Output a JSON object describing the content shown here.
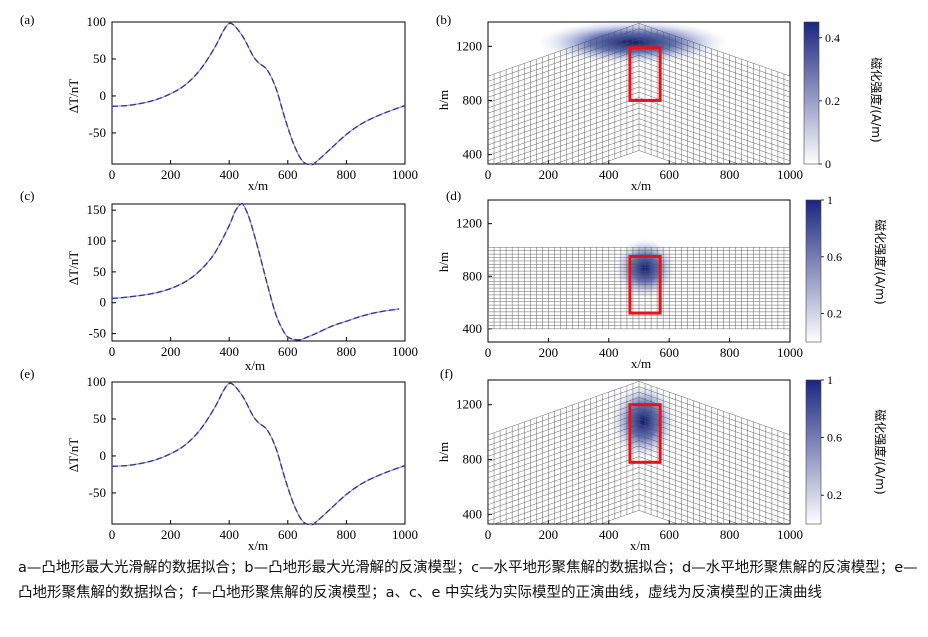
{
  "figure": {
    "caption": "a—凸地形最大光滑解的数据拟合；b—凸地形最大光滑解的反演模型；c—水平地形聚焦解的数据拟合；d—水平地形聚焦解的反演模型；e—凸地形聚焦解的数据拟合；f—凸地形聚焦解的反演模型；a、c、e 中实线为实际模型的正演曲线，虚线为反演模型的正演曲线"
  },
  "chart_data": [
    {
      "panel": "(a)",
      "type": "line",
      "xlabel": "x/m",
      "ylabel": "ΔT/nT",
      "xlim": [
        0,
        1000
      ],
      "ylim": [
        -92,
        100
      ],
      "xticks": [
        0,
        200,
        400,
        600,
        800,
        1000
      ],
      "yticks": [
        -50,
        0,
        50,
        100
      ],
      "series": [
        {
          "style": "solid",
          "color": "#9a9a9a",
          "x": [
            0,
            50,
            100,
            150,
            200,
            250,
            300,
            350,
            380,
            400,
            420,
            450,
            480,
            500,
            530,
            560,
            590,
            620,
            650,
            680,
            700,
            750,
            800,
            850,
            900,
            950,
            1000
          ],
          "y": [
            -14,
            -13,
            -10,
            -5,
            3,
            15,
            35,
            65,
            88,
            98,
            94,
            78,
            55,
            45,
            35,
            10,
            -30,
            -65,
            -88,
            -93,
            -88,
            -70,
            -52,
            -38,
            -28,
            -20,
            -13
          ]
        },
        {
          "style": "dashed",
          "color": "#2f38a8",
          "x": [
            0,
            50,
            100,
            150,
            200,
            250,
            300,
            350,
            380,
            400,
            420,
            450,
            480,
            500,
            530,
            560,
            590,
            620,
            650,
            680,
            700,
            750,
            800,
            850,
            900,
            950,
            1000
          ],
          "y": [
            -14,
            -13,
            -10,
            -5,
            3,
            15,
            35,
            65,
            88,
            98,
            94,
            78,
            55,
            45,
            35,
            10,
            -30,
            -65,
            -88,
            -93,
            -88,
            -70,
            -52,
            -38,
            -28,
            -20,
            -13
          ]
        }
      ]
    },
    {
      "panel": "(b)",
      "type": "heatmap",
      "terrain": "convex",
      "xlabel": "x/m",
      "ylabel": "h/m",
      "xlim": [
        0,
        1000
      ],
      "ylim": [
        330,
        1380
      ],
      "xticks": [
        0,
        200,
        400,
        600,
        800,
        1000
      ],
      "yticks": [
        400,
        800,
        1200
      ],
      "colorbar": {
        "label": "磁化强度/(A/m)",
        "range": [
          0,
          0.45
        ],
        "ticks": [
          0,
          0.2,
          0.4
        ]
      },
      "true_model": {
        "x": [
          470,
          570
        ],
        "h": [
          800,
          1190
        ]
      },
      "recovered": {
        "cx": 480,
        "ch": 1230,
        "value": 0.45
      }
    },
    {
      "panel": "(c)",
      "type": "line",
      "xlabel": "x/m",
      "ylabel": "ΔT/nT",
      "xlim": [
        0,
        1000
      ],
      "ylim": [
        -62,
        160
      ],
      "xticks": [
        0,
        200,
        400,
        600,
        800,
        1000
      ],
      "yticks": [
        -50,
        0,
        50,
        100,
        150
      ],
      "series": [
        {
          "style": "solid",
          "color": "#9a9a9a",
          "x": [
            0,
            50,
            100,
            150,
            200,
            250,
            300,
            350,
            400,
            420,
            440,
            450,
            470,
            500,
            530,
            560,
            590,
            610,
            640,
            660,
            700,
            750,
            800,
            850,
            900,
            950,
            980
          ],
          "y": [
            7,
            9,
            12,
            16,
            23,
            34,
            52,
            80,
            125,
            148,
            160,
            157,
            135,
            85,
            30,
            -20,
            -50,
            -58,
            -60,
            -57,
            -49,
            -38,
            -30,
            -22,
            -16,
            -12,
            -10
          ]
        },
        {
          "style": "dashed",
          "color": "#2f38a8",
          "x": [
            0,
            50,
            100,
            150,
            200,
            250,
            300,
            350,
            400,
            420,
            440,
            450,
            470,
            500,
            530,
            560,
            590,
            610,
            640,
            660,
            700,
            750,
            800,
            850,
            900,
            950,
            980
          ],
          "y": [
            7,
            9,
            12,
            16,
            23,
            34,
            52,
            80,
            125,
            148,
            160,
            157,
            135,
            85,
            30,
            -20,
            -50,
            -58,
            -60,
            -57,
            -49,
            -38,
            -30,
            -22,
            -16,
            -12,
            -10
          ]
        }
      ]
    },
    {
      "panel": "(d)",
      "type": "heatmap",
      "terrain": "flat",
      "xlabel": "x/m",
      "ylabel": "h/m",
      "xlim": [
        0,
        1000
      ],
      "ylim": [
        300,
        1380
      ],
      "xticks": [
        0,
        200,
        400,
        600,
        800,
        1000
      ],
      "yticks": [
        400,
        800,
        1200
      ],
      "colorbar": {
        "label": "磁化强度/(A/m)",
        "range": [
          0,
          1
        ],
        "ticks": [
          0.2,
          0.6,
          1
        ]
      },
      "true_model": {
        "x": [
          470,
          570
        ],
        "h": [
          520,
          950
        ]
      },
      "recovered": {
        "cx": 520,
        "ch": 860,
        "value": 1.0
      }
    },
    {
      "panel": "(e)",
      "type": "line",
      "xlabel": "x/m",
      "ylabel": "ΔT/nT",
      "xlim": [
        0,
        1000
      ],
      "ylim": [
        -92,
        100
      ],
      "xticks": [
        0,
        200,
        400,
        600,
        800,
        1000
      ],
      "yticks": [
        -50,
        0,
        50,
        100
      ],
      "series": [
        {
          "style": "solid",
          "color": "#9a9a9a",
          "x": [
            0,
            50,
            100,
            150,
            200,
            250,
            300,
            350,
            380,
            400,
            420,
            450,
            480,
            500,
            530,
            560,
            590,
            620,
            650,
            680,
            700,
            750,
            800,
            850,
            900,
            950,
            1000
          ],
          "y": [
            -14,
            -13,
            -10,
            -5,
            3,
            15,
            35,
            65,
            88,
            98,
            94,
            78,
            55,
            45,
            35,
            10,
            -30,
            -65,
            -88,
            -93,
            -88,
            -70,
            -52,
            -38,
            -28,
            -20,
            -13
          ]
        },
        {
          "style": "dashed",
          "color": "#2f38a8",
          "x": [
            0,
            50,
            100,
            150,
            200,
            250,
            300,
            350,
            380,
            400,
            420,
            450,
            480,
            500,
            530,
            560,
            590,
            620,
            650,
            680,
            700,
            750,
            800,
            850,
            900,
            950,
            1000
          ],
          "y": [
            -14,
            -13,
            -10,
            -5,
            3,
            15,
            35,
            65,
            88,
            98,
            94,
            78,
            55,
            45,
            35,
            10,
            -30,
            -65,
            -88,
            -93,
            -88,
            -70,
            -52,
            -38,
            -28,
            -20,
            -13
          ]
        }
      ]
    },
    {
      "panel": "(f)",
      "type": "heatmap",
      "terrain": "convex",
      "xlabel": "x/m",
      "ylabel": "h/m",
      "xlim": [
        0,
        1000
      ],
      "ylim": [
        330,
        1380
      ],
      "xticks": [
        0,
        200,
        400,
        600,
        800,
        1000
      ],
      "yticks": [
        400,
        800,
        1200
      ],
      "colorbar": {
        "label": "磁化强度/(A/m)",
        "range": [
          0,
          1
        ],
        "ticks": [
          0.2,
          0.6,
          1
        ]
      },
      "true_model": {
        "x": [
          470,
          570
        ],
        "h": [
          780,
          1200
        ]
      },
      "recovered": {
        "cx": 515,
        "ch": 1080,
        "value": 1.0
      }
    }
  ]
}
